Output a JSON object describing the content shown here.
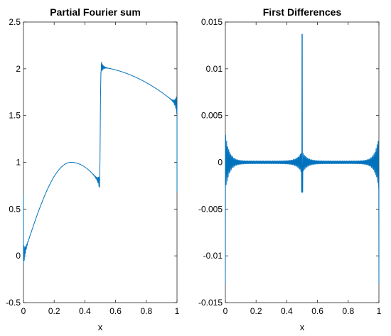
{
  "chart_data": [
    {
      "type": "line",
      "title": "Partial Fourier sum",
      "xlabel": "x",
      "ylabel": "",
      "xlim": [
        0,
        1
      ],
      "ylim": [
        -0.5,
        2.5
      ],
      "xticks": [
        "0",
        "0.2",
        "0.4",
        "0.6",
        "0.8",
        "1"
      ],
      "yticks": [
        "-0.5",
        "0",
        "0.5",
        "1",
        "1.5",
        "2",
        "2.5"
      ],
      "grid": false,
      "color": "#0072BD",
      "series": [
        {
          "x": [
            0.0,
            0.02,
            0.05,
            0.1,
            0.15,
            0.2,
            0.25,
            0.3,
            0.32,
            0.35,
            0.4,
            0.45,
            0.48,
            0.5,
            0.52,
            0.55,
            0.6,
            0.65,
            0.7,
            0.75,
            0.8,
            0.85,
            0.9,
            0.95,
            1.0
          ],
          "y": [
            -0.05,
            0.08,
            0.28,
            0.55,
            0.76,
            0.9,
            0.98,
            1.0,
            0.99,
            0.95,
            0.85,
            0.72,
            0.62,
            1.3,
            2.02,
            2.0,
            1.94,
            1.86,
            1.77,
            1.68,
            1.6,
            1.53,
            1.46,
            1.39,
            1.33
          ]
        }
      ]
    },
    {
      "type": "line",
      "title": "First Differences",
      "xlabel": "x",
      "ylabel": "",
      "xlim": [
        0,
        1
      ],
      "ylim": [
        -0.015,
        0.015
      ],
      "xticks": [
        "0",
        "0.2",
        "0.4",
        "0.6",
        "0.8",
        "1"
      ],
      "yticks": [
        "-0.015",
        "-0.01",
        "-0.005",
        "0",
        "0.005",
        "0.01",
        "0.015"
      ],
      "grid": false,
      "color": "#0072BD",
      "series": [
        {
          "x": [
            0.0,
            0.01,
            0.05,
            0.1,
            0.2,
            0.3,
            0.4,
            0.45,
            0.49,
            0.5,
            0.51,
            0.55,
            0.6,
            0.7,
            0.8,
            0.9,
            0.95,
            0.99,
            1.0
          ],
          "y": [
            -0.013,
            0.003,
            0.0008,
            0.0004,
            0.0002,
            0.0001,
            0.0002,
            0.0008,
            -0.003,
            0.0137,
            -0.003,
            0.0008,
            0.0003,
            0.0001,
            0.0,
            -0.0001,
            -0.0002,
            0.0028,
            -0.013
          ]
        }
      ]
    }
  ]
}
